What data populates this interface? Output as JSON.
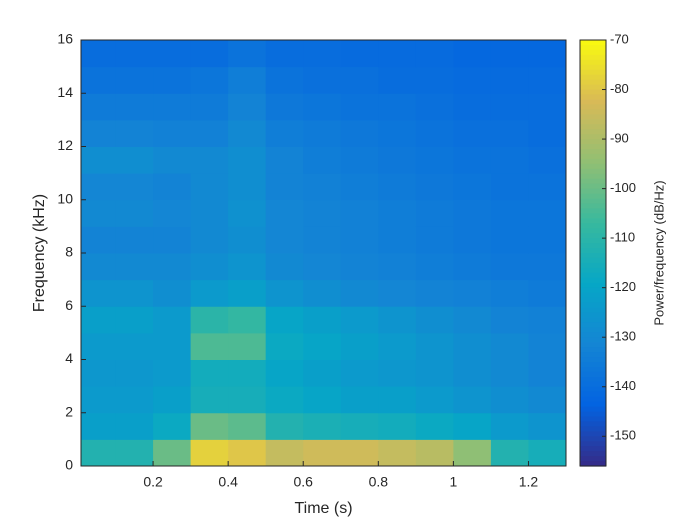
{
  "chart_data": {
    "type": "heatmap",
    "colormap": "parula",
    "xlabel": "Time (s)",
    "ylabel": "Frequency (kHz)",
    "colorbar_label": "Power/frequency (dB/Hz)",
    "x": [
      0.05,
      0.15,
      0.25,
      0.35,
      0.45,
      0.55,
      0.65,
      0.75,
      0.85,
      0.95,
      1.05,
      1.15,
      1.25
    ],
    "y": [
      0.5,
      1.5,
      2.5,
      3.5,
      4.5,
      5.5,
      6.5,
      7.5,
      8.5,
      9.5,
      10.5,
      11.5,
      12.5,
      13.5,
      14.5,
      15.5
    ],
    "z": [
      [
        -112,
        -112,
        -100,
        -78,
        -80,
        -86,
        -84,
        -84,
        -86,
        -88,
        -95,
        -112,
        -115
      ],
      [
        -122,
        -122,
        -118,
        -100,
        -102,
        -112,
        -114,
        -115,
        -116,
        -118,
        -120,
        -124,
        -126
      ],
      [
        -124,
        -124,
        -122,
        -115,
        -115,
        -118,
        -120,
        -122,
        -122,
        -124,
        -126,
        -128,
        -130
      ],
      [
        -125,
        -125,
        -124,
        -116,
        -116,
        -120,
        -122,
        -124,
        -125,
        -126,
        -128,
        -130,
        -132
      ],
      [
        -124,
        -124,
        -124,
        -104,
        -104,
        -118,
        -120,
        -122,
        -124,
        -126,
        -128,
        -130,
        -132
      ],
      [
        -122,
        -122,
        -124,
        -110,
        -108,
        -120,
        -122,
        -124,
        -126,
        -128,
        -130,
        -132,
        -133
      ],
      [
        -126,
        -126,
        -128,
        -124,
        -122,
        -126,
        -128,
        -130,
        -131,
        -132,
        -133,
        -134,
        -135
      ],
      [
        -130,
        -130,
        -130,
        -128,
        -126,
        -130,
        -131,
        -132,
        -133,
        -134,
        -135,
        -136,
        -136
      ],
      [
        -132,
        -132,
        -132,
        -130,
        -128,
        -131,
        -132,
        -133,
        -134,
        -135,
        -136,
        -137,
        -137
      ],
      [
        -130,
        -130,
        -131,
        -130,
        -127,
        -131,
        -132,
        -133,
        -134,
        -135,
        -136,
        -137,
        -137
      ],
      [
        -131,
        -131,
        -132,
        -130,
        -128,
        -132,
        -133,
        -134,
        -135,
        -136,
        -137,
        -138,
        -138
      ],
      [
        -128,
        -128,
        -130,
        -130,
        -128,
        -132,
        -134,
        -135,
        -136,
        -137,
        -138,
        -138,
        -139
      ],
      [
        -132,
        -132,
        -133,
        -133,
        -130,
        -134,
        -135,
        -136,
        -137,
        -138,
        -139,
        -139,
        -140
      ],
      [
        -135,
        -135,
        -135,
        -135,
        -132,
        -136,
        -137,
        -138,
        -138,
        -139,
        -140,
        -140,
        -140
      ],
      [
        -138,
        -138,
        -138,
        -137,
        -134,
        -138,
        -139,
        -139,
        -140,
        -140,
        -141,
        -141,
        -141
      ],
      [
        -140,
        -140,
        -140,
        -140,
        -138,
        -140,
        -140,
        -141,
        -141,
        -141,
        -142,
        -142,
        -142
      ]
    ],
    "xlim": [
      0.008,
      1.3
    ],
    "xticks": [
      0.2,
      0.4,
      0.6,
      0.8,
      1,
      1.2
    ],
    "ylim": [
      0,
      16
    ],
    "yticks": [
      0,
      2,
      4,
      6,
      8,
      10,
      12,
      14,
      16
    ],
    "clim": [
      -156,
      -70
    ],
    "cticks": [
      -150,
      -140,
      -130,
      -120,
      -110,
      -100,
      -90,
      -80,
      -70
    ]
  }
}
